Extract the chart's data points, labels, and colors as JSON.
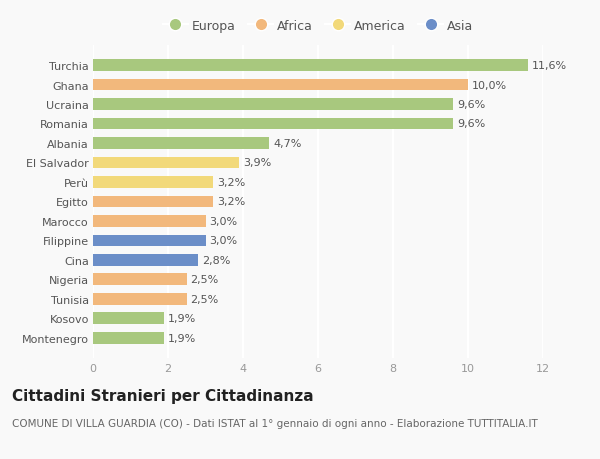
{
  "countries": [
    "Turchia",
    "Ghana",
    "Ucraina",
    "Romania",
    "Albania",
    "El Salvador",
    "Perù",
    "Egitto",
    "Marocco",
    "Filippine",
    "Cina",
    "Nigeria",
    "Tunisia",
    "Kosovo",
    "Montenegro"
  ],
  "values": [
    11.6,
    10.0,
    9.6,
    9.6,
    4.7,
    3.9,
    3.2,
    3.2,
    3.0,
    3.0,
    2.8,
    2.5,
    2.5,
    1.9,
    1.9
  ],
  "labels": [
    "11,6%",
    "10,0%",
    "9,6%",
    "9,6%",
    "4,7%",
    "3,9%",
    "3,2%",
    "3,2%",
    "3,0%",
    "3,0%",
    "2,8%",
    "2,5%",
    "2,5%",
    "1,9%",
    "1,9%"
  ],
  "categories": [
    "Europa",
    "Africa",
    "America",
    "Asia"
  ],
  "continent": [
    "Europa",
    "Africa",
    "Europa",
    "Europa",
    "Europa",
    "America",
    "America",
    "Africa",
    "Africa",
    "Asia",
    "Asia",
    "Africa",
    "Africa",
    "Europa",
    "Europa"
  ],
  "colors": {
    "Europa": "#a8c87e",
    "Africa": "#f2b87c",
    "America": "#f2d97a",
    "Asia": "#6b8ec8"
  },
  "title": "Cittadini Stranieri per Cittadinanza",
  "subtitle": "COMUNE DI VILLA GUARDIA (CO) - Dati ISTAT al 1° gennaio di ogni anno - Elaborazione TUTTITALIA.IT",
  "xlim": [
    0,
    12
  ],
  "xticks": [
    0,
    2,
    4,
    6,
    8,
    10,
    12
  ],
  "bg_color": "#f9f9f9",
  "plot_bg_color": "#f9f9f9",
  "grid_color": "#ffffff",
  "bar_height": 0.6,
  "title_fontsize": 11,
  "subtitle_fontsize": 7.5,
  "label_fontsize": 8,
  "tick_fontsize": 8,
  "legend_fontsize": 9
}
